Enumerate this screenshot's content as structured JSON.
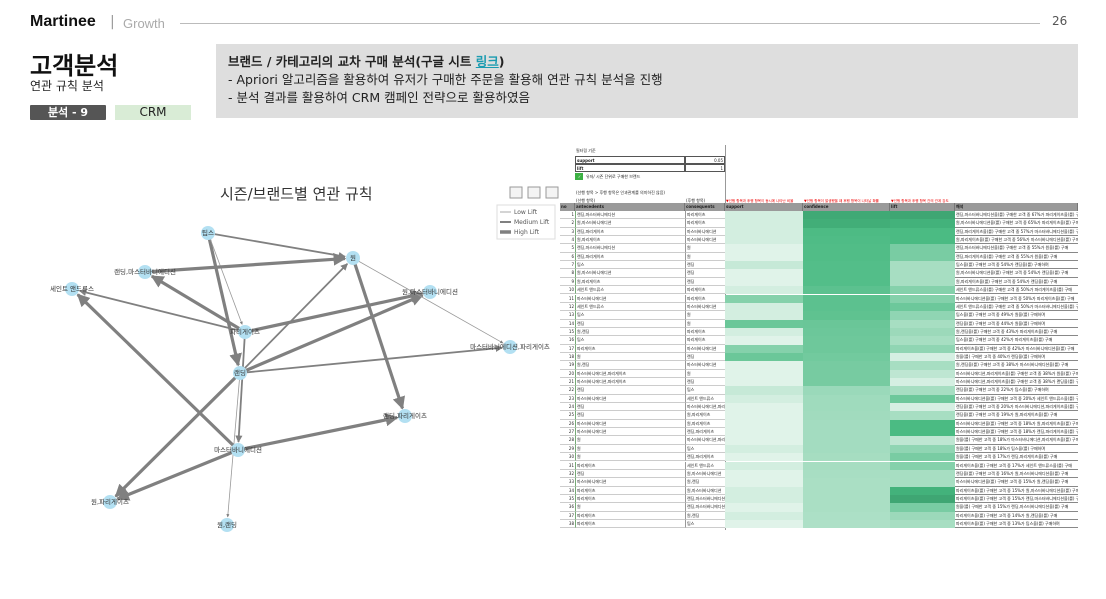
{
  "header": {
    "brand": "Martinee",
    "separator": "|",
    "section": "Growth",
    "page_number": "26"
  },
  "title": "고객분석",
  "subtitle": "연관 규칙 분석",
  "tags": {
    "analysis": "분석 - 9",
    "category": "CRM"
  },
  "description": {
    "heading_prefix": "브랜드 / 카테고리의 교차 구매 분석(구글 시트 ",
    "heading_link": "링크",
    "heading_suffix": ")",
    "lines": [
      "- Apriori 알고리즘을 활용하여 유저가 구매한 주문을 활용해 연관 규칙 분석을 진행",
      "- 분석 결과를 활용하여 CRM 캠페인 전략으로 활용하였음"
    ]
  },
  "graph": {
    "title": "시즌/브랜드별 연관 규칙",
    "legend": [
      "Low Lift",
      "Medium Lift",
      "High Lift"
    ],
    "colors": {
      "node": "#b3e0f2",
      "edge": "#808080"
    },
    "nodes": [
      "팁스",
      "원",
      "랜딩,마스터바니에디션",
      "세인트 앤드류스",
      "원,마스터바니에디션",
      "파리게이츠",
      "마스터바니에디션,파리게이츠",
      "랜딩",
      "랜딩,파리게이츠",
      "마스터바니에디션",
      "원,파리게이츠",
      "원,랜딩"
    ],
    "edges": [
      [
        "팁스",
        "원",
        "medium"
      ],
      [
        "팁스",
        "랜딩",
        "high"
      ],
      [
        "팁스",
        "파리게이츠",
        "low"
      ],
      [
        "랜딩,마스터바니에디션",
        "원",
        "high"
      ],
      [
        "파리게이츠",
        "랜딩,마스터바니에디션",
        "high"
      ],
      [
        "파리게이츠",
        "세인트 앤드류스",
        "medium"
      ],
      [
        "파리게이츠",
        "원,마스터바니에디션",
        "high"
      ],
      [
        "파리게이츠",
        "마스터바니에디션",
        "medium"
      ],
      [
        "랜딩",
        "원",
        "medium"
      ],
      [
        "랜딩",
        "원,마스터바니에디션",
        "high"
      ],
      [
        "랜딩",
        "마스터바니에디션,파리게이츠",
        "medium"
      ],
      [
        "랜딩",
        "원,파리게이츠",
        "high"
      ],
      [
        "랜딩",
        "원,랜딩",
        "low"
      ],
      [
        "원",
        "마스터바니에디션,파리게이츠",
        "low"
      ],
      [
        "원",
        "랜딩,파리게이츠",
        "high"
      ],
      [
        "마스터바니에디션",
        "세인트 앤드류스",
        "high"
      ],
      [
        "마스터바니에디션",
        "랜딩,파리게이츠",
        "high"
      ],
      [
        "마스터바니에디션",
        "원,파리게이츠",
        "high"
      ]
    ]
  },
  "sheet": {
    "filter_label": "필터링 기준",
    "filters": [
      [
        "support",
        "0.05"
      ],
      [
        "lift",
        "1"
      ]
    ],
    "checkbox_label": "유저/ 시즌 단위로 구매한 브랜드",
    "note": "(선행 항목 > 후행 항목은 인과관계를 의미하진 않음)",
    "ante_label": "(선행 항목)",
    "cons_label": "(후행 항목)",
    "col_notes": [
      "▼선행 항목과 후행 항목이 동시에 나타난 비율",
      "▼선행 항목이 발생했을 때 후행 항목이 나타날 확률",
      "▼선행 항목과 후행 항목 간의 관계 강도"
    ],
    "columns": [
      "no",
      "antecedents",
      "consequents",
      "support",
      "confidence",
      "lift",
      "해석"
    ],
    "rows": [
      [
        "랜딩,마스터바니에디션",
        "파리게이츠",
        0.06,
        0.67,
        2.6
      ],
      [
        "원,마스터바니에디션",
        "파리게이츠",
        0.06,
        0.65,
        2.5
      ],
      [
        "랜딩,파리게이츠",
        "마스터바니에디션",
        0.06,
        0.57,
        2.4
      ],
      [
        "원,파리게이츠",
        "마스터바니에디션",
        0.06,
        0.56,
        2.4
      ],
      [
        "랜딩,마스터바니에디션",
        "원",
        0.05,
        0.55,
        2.0
      ],
      [
        "랜딩,파리게이츠",
        "원",
        0.05,
        0.55,
        2.0
      ],
      [
        "팁스",
        "랜딩",
        0.07,
        0.54,
        1.6
      ],
      [
        "원,마스터바니에디션",
        "랜딩",
        0.05,
        0.54,
        1.6
      ],
      [
        "원,파리게이츠",
        "랜딩",
        0.05,
        0.54,
        1.6
      ],
      [
        "세인트 앤드류스",
        "파리게이츠",
        0.06,
        0.5,
        1.9
      ],
      [
        "마스터바니에디션",
        "파리게이츠",
        0.12,
        0.5,
        1.9
      ],
      [
        "세인트 앤드류스",
        "마스터바니에디션",
        0.06,
        0.5,
        2.1
      ],
      [
        "팁스",
        "원",
        0.06,
        0.49,
        1.8
      ],
      [
        "랜딩",
        "원",
        0.14,
        0.44,
        1.6
      ],
      [
        "원,랜딩",
        "파리게이츠",
        0.06,
        0.43,
        1.7
      ],
      [
        "팁스",
        "파리게이츠",
        0.05,
        0.42,
        1.6
      ],
      [
        "파리게이츠",
        "마스터바니에디션",
        0.12,
        0.42,
        1.8
      ],
      [
        "원",
        "랜딩",
        0.14,
        0.4,
        1.2
      ],
      [
        "원,랜딩",
        "마스터바니에디션",
        0.05,
        0.38,
        1.6
      ],
      [
        "마스터바니에디션,파리게이츠",
        "원",
        0.05,
        0.38,
        1.4
      ],
      [
        "마스터바니에디션,파리게이츠",
        "랜딩",
        0.05,
        0.38,
        1.2
      ],
      [
        "랜딩",
        "팁스",
        0.07,
        0.22,
        1.6
      ],
      [
        "마스터바니에디션",
        "세인트 앤드류스",
        0.06,
        0.2,
        2.1
      ],
      [
        "랜딩",
        "마스터바니에디션,파리게이츠",
        0.05,
        0.2,
        1.2
      ],
      [
        "랜딩",
        "원,파리게이츠",
        0.05,
        0.19,
        1.6
      ],
      [
        "마스터바니에디션",
        "원,파리게이츠",
        0.05,
        0.18,
        2.4
      ],
      [
        "마스터바니에디션",
        "랜딩,파리게이츠",
        0.05,
        0.18,
        2.4
      ],
      [
        "원",
        "마스터바니에디션,파리게이츠",
        0.05,
        0.18,
        1.4
      ],
      [
        "원",
        "팁스",
        0.06,
        0.18,
        1.8
      ],
      [
        "원",
        "랜딩,파리게이츠",
        0.05,
        0.17,
        2.0
      ],
      [
        "파리게이츠",
        "세인트 앤드류스",
        0.06,
        0.17,
        1.9
      ],
      [
        "랜딩",
        "원,마스터바니에디션",
        0.05,
        0.16,
        1.6
      ],
      [
        "마스터바니에디션",
        "원,랜딩",
        0.05,
        0.15,
        1.6
      ],
      [
        "파리게이츠",
        "원,마스터바니에디션",
        0.06,
        0.15,
        2.5
      ],
      [
        "파리게이츠",
        "랜딩,마스터바니에디션",
        0.06,
        0.15,
        2.6
      ],
      [
        "원",
        "랜딩,마스터바니에디션",
        0.05,
        0.15,
        2.0
      ],
      [
        "파리게이츠",
        "원,랜딩",
        0.06,
        0.14,
        1.7
      ],
      [
        "파리게이츠",
        "팁스",
        0.05,
        0.13,
        1.6
      ]
    ],
    "interpretations": [
      "랜딩,마스터바니에디션을(를) 구매한 고객 중 67%가 파리게이츠을(를) 구매",
      "원,마스터바니에디션을(를) 구매한 고객 중 65%가 파리게이츠을(를) 구매",
      "랜딩,파리게이츠을(를) 구매한 고객 중 57%가 마스터바니에디션을(를) 구매",
      "원,파리게이츠을(를) 구매한 고객 중 56%가 마스터바니에디션을(를) 구매",
      "랜딩,마스터바니에디션을(를) 구매한 고객 중 55%가 원을(를) 구매",
      "랜딩,파리게이츠을(를) 구매한 고객 중 55%가 원을(를) 구매",
      "팁스을(를) 구매한 고객 중 54%가 랜딩을(를) 구매하며",
      "원,마스터바니에디션을(를) 구매한 고객 중 54%가 랜딩을(를) 구매",
      "원,파리게이츠을(를) 구매한 고객 중 54%가 랜딩을(를) 구매",
      "세인트 앤드류스을(를) 구매한 고객 중 50%가 파리게이츠을(를) 구매",
      "마스터바니에디션을(를) 구매한 고객 중 50%가 파리게이츠을(를) 구매",
      "세인트 앤드류스을(를) 구매한 고객 중 50%가 마스터바니에디션을(를) 구매",
      "팁스을(를) 구매한 고객 중 49%가 원을(를) 구매하며",
      "랜딩을(를) 구매한 고객 중 44%가 원을(를) 구매하며",
      "원,랜딩을(를) 구매한 고객 중 43%가 파리게이츠을(를) 구매",
      "팁스을(를) 구매한 고객 중 42%가 파리게이츠을(를) 구매",
      "파리게이츠을(를) 구매한 고객 중 42%가 마스터바니에디션을(를) 구매",
      "원을(를) 구매한 고객 중 40%가 랜딩을(를) 구매하며",
      "원,랜딩을(를) 구매한 고객 중 38%가 마스터바니에디션을(를) 구매",
      "마스터바니에디션,파리게이츠을(를) 구매한 고객 중 38%가 원을(를) 구매",
      "마스터바니에디션,파리게이츠을(를) 구매한 고객 중 38%가 랜딩을(를) 구매",
      "랜딩을(를) 구매한 고객 중 22%가 팁스을(를) 구매하며",
      "마스터바니에디션을(를) 구매한 고객 중 20%가 세인트 앤드류스을(를) 구매",
      "랜딩을(를) 구매한 고객 중 20%가 마스터바니에디션,파리게이츠을(를) 구매",
      "랜딩을(를) 구매한 고객 중 19%가 원,파리게이츠을(를) 구매",
      "마스터바니에디션을(를) 구매한 고객 중 18%가 원,파리게이츠을(를) 구매",
      "마스터바니에디션을(를) 구매한 고객 중 18%가 랜딩,파리게이츠을(를) 구매",
      "원을(를) 구매한 고객 중 18%가 마스터바니에디션,파리게이츠을(를) 구매",
      "원을(를) 구매한 고객 중 18%가 팁스을(를) 구매하며",
      "원을(를) 구매한 고객 중 17%가 랜딩,파리게이츠을(를) 구매",
      "파리게이츠을(를) 구매한 고객 중 17%가 세인트 앤드류스을(를) 구매",
      "랜딩을(를) 구매한 고객 중 16%가 원,마스터바니에디션을(를) 구매",
      "마스터바니에디션을(를) 구매한 고객 중 15%가 원,랜딩을(를) 구매",
      "파리게이츠을(를) 구매한 고객 중 15%가 원,마스터바니에디션을(를) 구매",
      "파리게이츠을(를) 구매한 고객 중 15%가 랜딩,마스터바니에디션을(를) 구매",
      "원을(를) 구매한 고객 중 15%가 랜딩,마스터바니에디션을(를) 구매",
      "파리게이츠을(를) 구매한 고객 중 14%가 원,랜딩을(를) 구매",
      "파리게이츠을(를) 구매한 고객 중 13%가 팁스을(를) 구매하며"
    ]
  }
}
